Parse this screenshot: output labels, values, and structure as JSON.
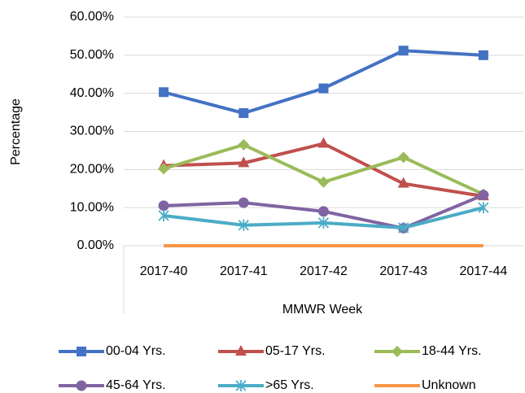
{
  "chart_data": {
    "type": "line",
    "x_label": "MMWR Week",
    "y_label": "Percentage",
    "categories": [
      "2017-40",
      "2017-41",
      "2017-42",
      "2017-43",
      "2017-44"
    ],
    "series": [
      {
        "name": "00-04 Yrs.",
        "color": "#4472c4",
        "marker": "square",
        "values": [
          40.3,
          34.8,
          41.3,
          51.2,
          50.0
        ]
      },
      {
        "name": "05-17 Yrs.",
        "color": "#c0504d",
        "marker": "triangle",
        "values": [
          21.0,
          21.7,
          26.8,
          16.3,
          13.0
        ]
      },
      {
        "name": "18-44 Yrs.",
        "color": "#9bbb59",
        "marker": "diamond",
        "values": [
          20.2,
          26.5,
          16.7,
          23.2,
          13.5
        ]
      },
      {
        "name": "45-64 Yrs.",
        "color": "#8064a2",
        "marker": "circle",
        "values": [
          10.5,
          11.3,
          9.0,
          4.6,
          13.3
        ]
      },
      {
        "name": ">65 Yrs.",
        "color": "#4bacc6",
        "marker": "star",
        "values": [
          7.9,
          5.4,
          6.0,
          4.7,
          10.0
        ]
      },
      {
        "name": "Unknown",
        "color": "#f79646",
        "marker": "none",
        "values": [
          0,
          0,
          0,
          0,
          0
        ]
      }
    ],
    "ylim": [
      0,
      60
    ],
    "yticks": [
      {
        "value": 0,
        "label": "0.00%"
      },
      {
        "value": 10,
        "label": "10.00%"
      },
      {
        "value": 20,
        "label": "20.00%"
      },
      {
        "value": 30,
        "label": "30.00%"
      },
      {
        "value": 40,
        "label": "40.00%"
      },
      {
        "value": 50,
        "label": "50.00%"
      },
      {
        "value": 60,
        "label": "60.00%"
      }
    ],
    "grid": true,
    "legend": "bottom"
  }
}
